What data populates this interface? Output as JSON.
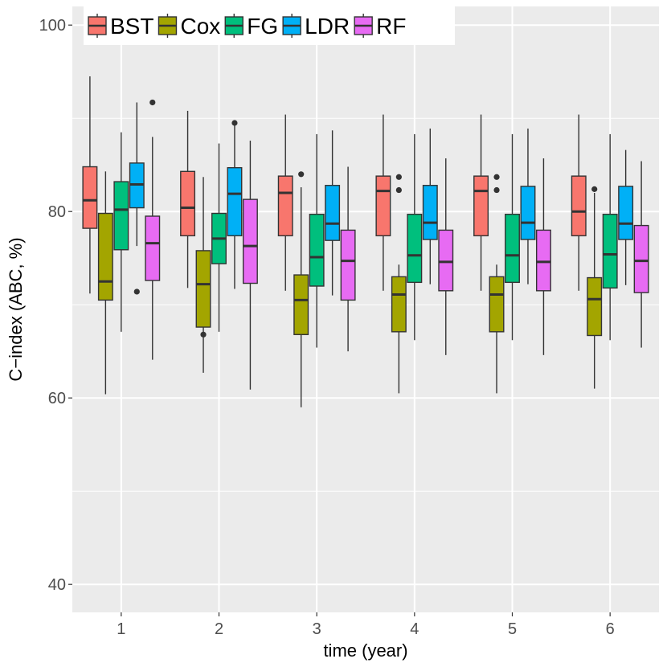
{
  "chart_data": {
    "type": "boxplot",
    "title": "",
    "xlabel": "time (year)",
    "ylabel": "C−index (ABC, %)",
    "ylim": [
      37,
      102
    ],
    "yticks": [
      40,
      60,
      80,
      100
    ],
    "categories": [
      "1",
      "2",
      "3",
      "4",
      "5",
      "6"
    ],
    "legend_position": "top-left",
    "grid": true,
    "series": [
      {
        "name": "BST",
        "color": "#F8766D",
        "boxes": [
          {
            "min": 71.2,
            "q1": 78.2,
            "median": 81.2,
            "q3": 84.8,
            "max": 94.5,
            "outliers": []
          },
          {
            "min": 71.8,
            "q1": 77.4,
            "median": 80.4,
            "q3": 84.3,
            "max": 90.8,
            "outliers": []
          },
          {
            "min": 71.5,
            "q1": 77.4,
            "median": 82.0,
            "q3": 83.8,
            "max": 90.4,
            "outliers": []
          },
          {
            "min": 71.5,
            "q1": 77.4,
            "median": 82.2,
            "q3": 83.8,
            "max": 90.4,
            "outliers": []
          },
          {
            "min": 71.5,
            "q1": 77.4,
            "median": 82.2,
            "q3": 83.8,
            "max": 90.4,
            "outliers": []
          },
          {
            "min": 71.5,
            "q1": 77.4,
            "median": 80.0,
            "q3": 83.8,
            "max": 90.4,
            "outliers": []
          }
        ]
      },
      {
        "name": "Cox",
        "color": "#A3A500",
        "boxes": [
          {
            "min": 60.4,
            "q1": 70.5,
            "median": 72.5,
            "q3": 79.8,
            "max": 84.3,
            "outliers": []
          },
          {
            "min": 62.7,
            "q1": 67.6,
            "median": 72.2,
            "q3": 75.8,
            "max": 83.7,
            "outliers": [
              66.8
            ]
          },
          {
            "min": 59.0,
            "q1": 66.8,
            "median": 70.5,
            "q3": 73.2,
            "max": 82.6,
            "outliers": [
              84.0
            ]
          },
          {
            "min": 60.5,
            "q1": 67.1,
            "median": 71.1,
            "q3": 73.0,
            "max": 74.3,
            "outliers": [
              83.7,
              82.3
            ]
          },
          {
            "min": 60.5,
            "q1": 67.1,
            "median": 71.1,
            "q3": 73.0,
            "max": 74.3,
            "outliers": [
              83.7,
              82.3
            ]
          },
          {
            "min": 61.0,
            "q1": 66.7,
            "median": 70.6,
            "q3": 72.9,
            "max": 82.0,
            "outliers": [
              82.4
            ]
          }
        ]
      },
      {
        "name": "FG",
        "color": "#00BF7D",
        "boxes": [
          {
            "min": 67.1,
            "q1": 75.9,
            "median": 80.2,
            "q3": 83.2,
            "max": 88.5,
            "outliers": []
          },
          {
            "min": 67.1,
            "q1": 74.4,
            "median": 77.1,
            "q3": 79.8,
            "max": 87.3,
            "outliers": []
          },
          {
            "min": 65.4,
            "q1": 72.0,
            "median": 75.1,
            "q3": 79.7,
            "max": 88.3,
            "outliers": []
          },
          {
            "min": 66.2,
            "q1": 72.4,
            "median": 75.3,
            "q3": 79.7,
            "max": 88.3,
            "outliers": []
          },
          {
            "min": 66.2,
            "q1": 72.4,
            "median": 75.3,
            "q3": 79.7,
            "max": 88.3,
            "outliers": []
          },
          {
            "min": 66.2,
            "q1": 71.8,
            "median": 75.4,
            "q3": 79.7,
            "max": 88.3,
            "outliers": []
          }
        ]
      },
      {
        "name": "LDR",
        "color": "#00B0F6",
        "boxes": [
          {
            "min": 76.3,
            "q1": 80.4,
            "median": 82.9,
            "q3": 85.2,
            "max": 91.7,
            "outliers": [
              71.4
            ]
          },
          {
            "min": 71.7,
            "q1": 77.4,
            "median": 81.9,
            "q3": 84.7,
            "max": 89.8,
            "outliers": [
              89.5
            ]
          },
          {
            "min": 71.0,
            "q1": 76.9,
            "median": 78.7,
            "q3": 82.8,
            "max": 88.7,
            "outliers": []
          },
          {
            "min": 72.2,
            "q1": 77.0,
            "median": 78.8,
            "q3": 82.8,
            "max": 88.9,
            "outliers": []
          },
          {
            "min": 72.2,
            "q1": 77.0,
            "median": 78.8,
            "q3": 82.7,
            "max": 88.9,
            "outliers": []
          },
          {
            "min": 72.1,
            "q1": 77.0,
            "median": 78.7,
            "q3": 82.7,
            "max": 86.6,
            "outliers": []
          }
        ]
      },
      {
        "name": "RF",
        "color": "#E76BF3",
        "boxes": [
          {
            "min": 64.1,
            "q1": 72.6,
            "median": 76.6,
            "q3": 79.5,
            "max": 88.0,
            "outliers": [
              91.7
            ]
          },
          {
            "min": 60.9,
            "q1": 72.3,
            "median": 76.3,
            "q3": 81.3,
            "max": 87.6,
            "outliers": []
          },
          {
            "min": 65.0,
            "q1": 70.5,
            "median": 74.7,
            "q3": 78.0,
            "max": 84.8,
            "outliers": []
          },
          {
            "min": 64.6,
            "q1": 71.5,
            "median": 74.6,
            "q3": 78.0,
            "max": 85.7,
            "outliers": []
          },
          {
            "min": 64.6,
            "q1": 71.5,
            "median": 74.6,
            "q3": 78.0,
            "max": 85.7,
            "outliers": []
          },
          {
            "min": 65.4,
            "q1": 71.3,
            "median": 74.7,
            "q3": 78.5,
            "max": 85.4,
            "outliers": []
          }
        ]
      }
    ]
  }
}
